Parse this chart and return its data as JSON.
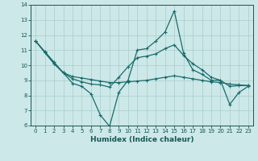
{
  "xlabel": "Humidex (Indice chaleur)",
  "bg_color": "#cce8e8",
  "grid_color": "#aacccc",
  "line_color": "#1a6b6b",
  "xlim": [
    -0.5,
    23.5
  ],
  "ylim": [
    6,
    14
  ],
  "yticks": [
    6,
    7,
    8,
    9,
    10,
    11,
    12,
    13,
    14
  ],
  "xticks": [
    0,
    1,
    2,
    3,
    4,
    5,
    6,
    7,
    8,
    9,
    10,
    11,
    12,
    13,
    14,
    15,
    16,
    17,
    18,
    19,
    20,
    21,
    22,
    23
  ],
  "line1_x": [
    0,
    1,
    2,
    3,
    4,
    5,
    6,
    7,
    8,
    9,
    10,
    11,
    12,
    13,
    14,
    15,
    16,
    17,
    18,
    19,
    20,
    21,
    22,
    23
  ],
  "line1_y": [
    11.6,
    10.9,
    10.2,
    9.5,
    8.8,
    8.6,
    8.1,
    6.7,
    5.95,
    8.2,
    9.0,
    11.0,
    11.1,
    11.6,
    12.2,
    13.6,
    10.8,
    9.7,
    9.4,
    9.0,
    9.0,
    7.4,
    8.2,
    8.6
  ],
  "line2_x": [
    0,
    1,
    2,
    3,
    4,
    5,
    6,
    7,
    8,
    9,
    10,
    11,
    12,
    13,
    14,
    15,
    16,
    17,
    18,
    19,
    20,
    21,
    22,
    23
  ],
  "line2_y": [
    11.6,
    10.85,
    10.1,
    9.5,
    9.25,
    9.15,
    9.05,
    8.95,
    8.85,
    8.85,
    8.9,
    8.95,
    9.0,
    9.1,
    9.2,
    9.3,
    9.2,
    9.1,
    9.0,
    8.9,
    8.85,
    8.75,
    8.7,
    8.65
  ],
  "line3_x": [
    0,
    1,
    2,
    3,
    4,
    5,
    6,
    7,
    8,
    9,
    10,
    11,
    12,
    13,
    14,
    15,
    16,
    17,
    18,
    19,
    20,
    21,
    22,
    23
  ],
  "line3_y": [
    11.6,
    10.85,
    10.1,
    9.5,
    9.1,
    8.9,
    8.75,
    8.7,
    8.55,
    9.2,
    9.9,
    10.5,
    10.6,
    10.75,
    11.1,
    11.35,
    10.65,
    10.1,
    9.7,
    9.2,
    9.0,
    8.6,
    8.65,
    8.65
  ]
}
